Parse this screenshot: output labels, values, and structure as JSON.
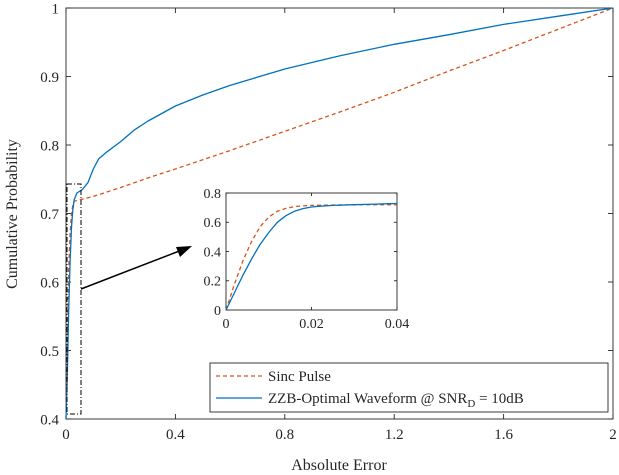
{
  "chart_data": [
    {
      "type": "line",
      "xlabel": "Absolute Error",
      "ylabel": "Cumulative Probability",
      "xlim": [
        0,
        2
      ],
      "ylim": [
        0.4,
        1
      ],
      "x_ticks": [
        0,
        0.4,
        0.8,
        1.2,
        1.6,
        2
      ],
      "x_tick_labels": [
        "0",
        "0.4",
        "0.8",
        "1.2",
        "1.6",
        "2"
      ],
      "y_ticks": [
        0.4,
        0.5,
        0.6,
        0.7,
        0.8,
        0.9,
        1
      ],
      "y_tick_labels": [
        "0.4",
        "0.5",
        "0.6",
        "0.7",
        "0.8",
        "0.9",
        "1"
      ],
      "grid": false,
      "legend_position": "bottom-right",
      "series": [
        {
          "name": "Sinc Pulse",
          "color": "#D95319",
          "style": "dashed",
          "x": [
            0,
            0.005,
            0.01,
            0.015,
            0.02,
            0.025,
            0.03,
            0.05,
            0.1,
            0.2,
            0.3,
            0.4,
            0.6,
            0.8,
            1.0,
            1.2,
            1.4,
            1.6,
            1.8,
            2.0
          ],
          "y": [
            0.4,
            0.52,
            0.62,
            0.67,
            0.7,
            0.712,
            0.718,
            0.72,
            0.725,
            0.738,
            0.752,
            0.765,
            0.792,
            0.82,
            0.848,
            0.877,
            0.908,
            0.938,
            0.969,
            1.0
          ]
        },
        {
          "name": "ZZB-Optimal Waveform @ SNR_D = 10dB",
          "color": "#0072BD",
          "style": "solid",
          "x": [
            0,
            0.005,
            0.01,
            0.015,
            0.02,
            0.025,
            0.03,
            0.04,
            0.06,
            0.08,
            0.1,
            0.12,
            0.15,
            0.2,
            0.25,
            0.3,
            0.4,
            0.5,
            0.6,
            0.8,
            1.0,
            1.2,
            1.4,
            1.6,
            1.8,
            2.0
          ],
          "y": [
            0.4,
            0.47,
            0.56,
            0.63,
            0.68,
            0.705,
            0.72,
            0.73,
            0.735,
            0.745,
            0.765,
            0.78,
            0.79,
            0.805,
            0.822,
            0.835,
            0.857,
            0.873,
            0.887,
            0.911,
            0.93,
            0.947,
            0.961,
            0.976,
            0.988,
            1.0
          ]
        }
      ]
    },
    {
      "type": "line",
      "role": "inset",
      "xlim": [
        0,
        0.04
      ],
      "ylim": [
        0,
        0.8
      ],
      "x_ticks": [
        0,
        0.02,
        0.04
      ],
      "x_tick_labels": [
        "0",
        "0.02",
        "0.04"
      ],
      "y_ticks": [
        0,
        0.2,
        0.4,
        0.6,
        0.8
      ],
      "y_tick_labels": [
        "0",
        "0.2",
        "0.4",
        "0.6",
        "0.8"
      ],
      "series": [
        {
          "name": "Sinc Pulse",
          "color": "#D95319",
          "style": "dashed",
          "x": [
            0,
            0.002,
            0.004,
            0.006,
            0.008,
            0.01,
            0.012,
            0.014,
            0.016,
            0.018,
            0.02,
            0.025,
            0.03,
            0.035,
            0.04
          ],
          "y": [
            0,
            0.18,
            0.34,
            0.47,
            0.57,
            0.635,
            0.675,
            0.695,
            0.707,
            0.712,
            0.715,
            0.718,
            0.719,
            0.72,
            0.72
          ]
        },
        {
          "name": "ZZB-Optimal Waveform @ SNR_D = 10dB",
          "color": "#0072BD",
          "style": "solid",
          "x": [
            0,
            0.002,
            0.004,
            0.006,
            0.008,
            0.01,
            0.012,
            0.014,
            0.016,
            0.018,
            0.02,
            0.022,
            0.025,
            0.03,
            0.035,
            0.04
          ],
          "y": [
            0,
            0.12,
            0.24,
            0.35,
            0.45,
            0.53,
            0.6,
            0.645,
            0.675,
            0.693,
            0.704,
            0.71,
            0.715,
            0.72,
            0.724,
            0.728
          ]
        }
      ]
    }
  ],
  "legend": {
    "sinc_label": "Sinc Pulse",
    "zzb_label_main": "ZZB-Optimal Waveform @ SNR",
    "zzb_label_sub": "D",
    "zzb_label_tail": " = 10dB"
  }
}
